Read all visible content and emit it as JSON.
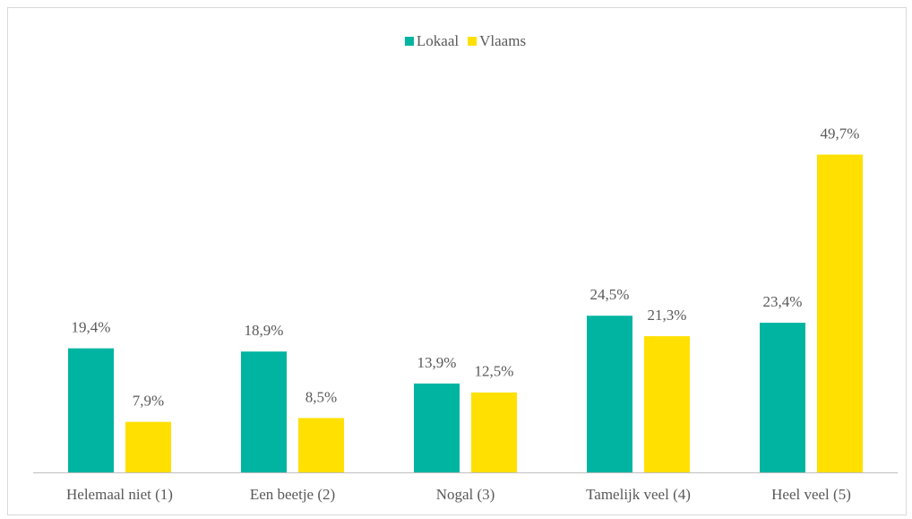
{
  "chart_data": {
    "type": "bar",
    "categories": [
      "Helemaal niet (1)",
      "Een beetje (2)",
      "Nogal (3)",
      "Tamelijk veel (4)",
      "Heel veel (5)"
    ],
    "series": [
      {
        "name": "Lokaal",
        "color": "#00b4a2",
        "values": [
          19.4,
          18.9,
          13.9,
          24.5,
          23.4
        ],
        "value_labels": [
          "19,4%",
          "18,9%",
          "13,9%",
          "24,5%",
          "23,4%"
        ]
      },
      {
        "name": "Vlaams",
        "color": "#ffe000",
        "values": [
          7.9,
          8.5,
          12.5,
          21.3,
          49.7
        ],
        "value_labels": [
          "7,9%",
          "8,5%",
          "12,5%",
          "21,3%",
          "49,7%"
        ]
      }
    ],
    "ylim": [
      0,
      60
    ],
    "legend": "top"
  }
}
